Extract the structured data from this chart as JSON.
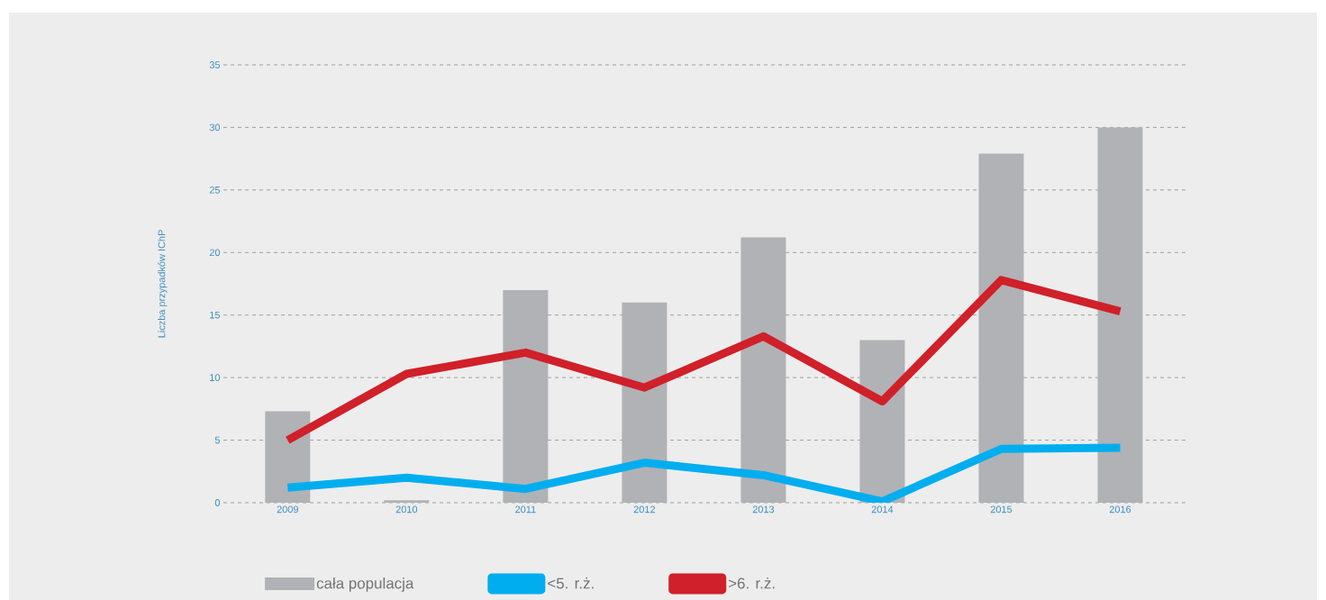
{
  "chart_data": {
    "type": "bar",
    "ylabel": "Liczba przypadków IChP",
    "categories": [
      "2009",
      "2010",
      "2011",
      "2012",
      "2013",
      "2014",
      "2015",
      "2016"
    ],
    "series": [
      {
        "name": "cała populacja",
        "color": "#b1b2b6",
        "values": [
          7.3,
          0.2,
          17,
          16,
          21.2,
          13,
          27.9,
          30
        ]
      },
      {
        "name": "<5. r.ż.",
        "type": "line",
        "color": "#00aeef",
        "values": [
          1.2,
          2.0,
          1.1,
          3.2,
          2.2,
          0.1,
          4.3,
          4.4
        ]
      },
      {
        "name": ">6. r.ż.",
        "type": "line",
        "color": "#d02029",
        "values": [
          5.0,
          10.3,
          12.0,
          9.2,
          13.3,
          8.1,
          17.8,
          15.3
        ]
      }
    ],
    "ylim": [
      0,
      35
    ],
    "yticks": [
      0,
      5,
      10,
      15,
      20,
      25,
      30,
      35
    ],
    "grid": "y",
    "legend": "bottom"
  }
}
